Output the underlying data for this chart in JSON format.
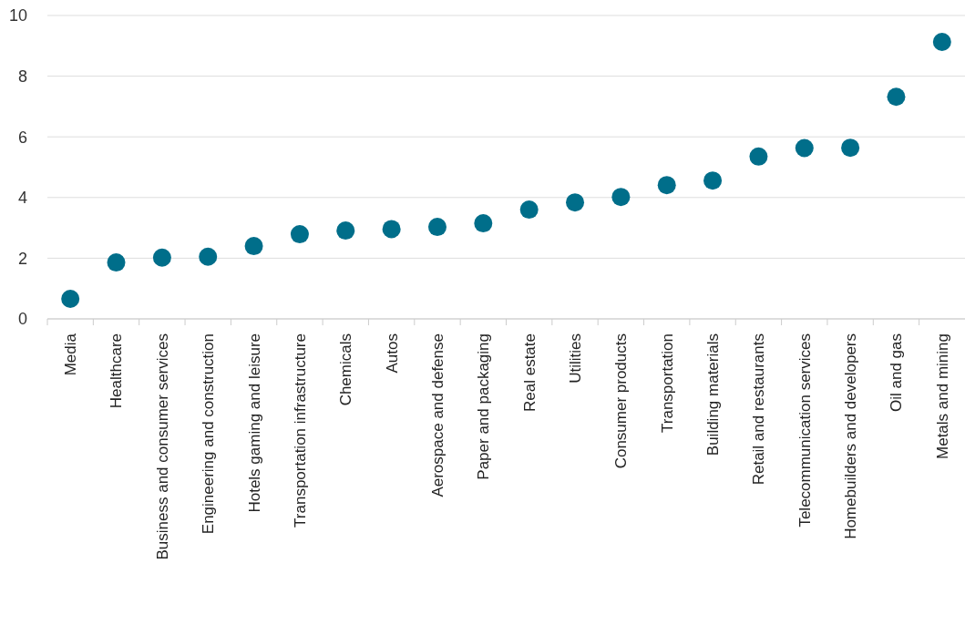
{
  "chart_data": {
    "type": "scatter",
    "categories": [
      "Media",
      "Healthcare",
      "Business and consumer services",
      "Engineering and construction",
      "Hotels gaming and leisure",
      "Transportation infrastructure",
      "Chemicals",
      "Autos",
      "Aerospace and defense",
      "Paper and packaging",
      "Real estate",
      "Utilities",
      "Consumer products",
      "Transportation",
      "Building materials",
      "Retail and restaurants",
      "Telecommunication services",
      "Homebuilders and developers",
      "Oil and gas",
      "Metals and mining"
    ],
    "series": [
      {
        "color": "#006e8a",
        "values": [
          0.66,
          1.86,
          2.02,
          2.05,
          2.4,
          2.79,
          2.91,
          2.96,
          3.03,
          3.15,
          3.6,
          3.84,
          4.02,
          4.41,
          4.56,
          5.35,
          5.63,
          5.64,
          7.32,
          9.13
        ]
      }
    ],
    "ylim": [
      0,
      10
    ],
    "yticks": [
      0,
      2,
      4,
      6,
      8,
      10
    ],
    "grid": "y",
    "marker": "circle"
  }
}
